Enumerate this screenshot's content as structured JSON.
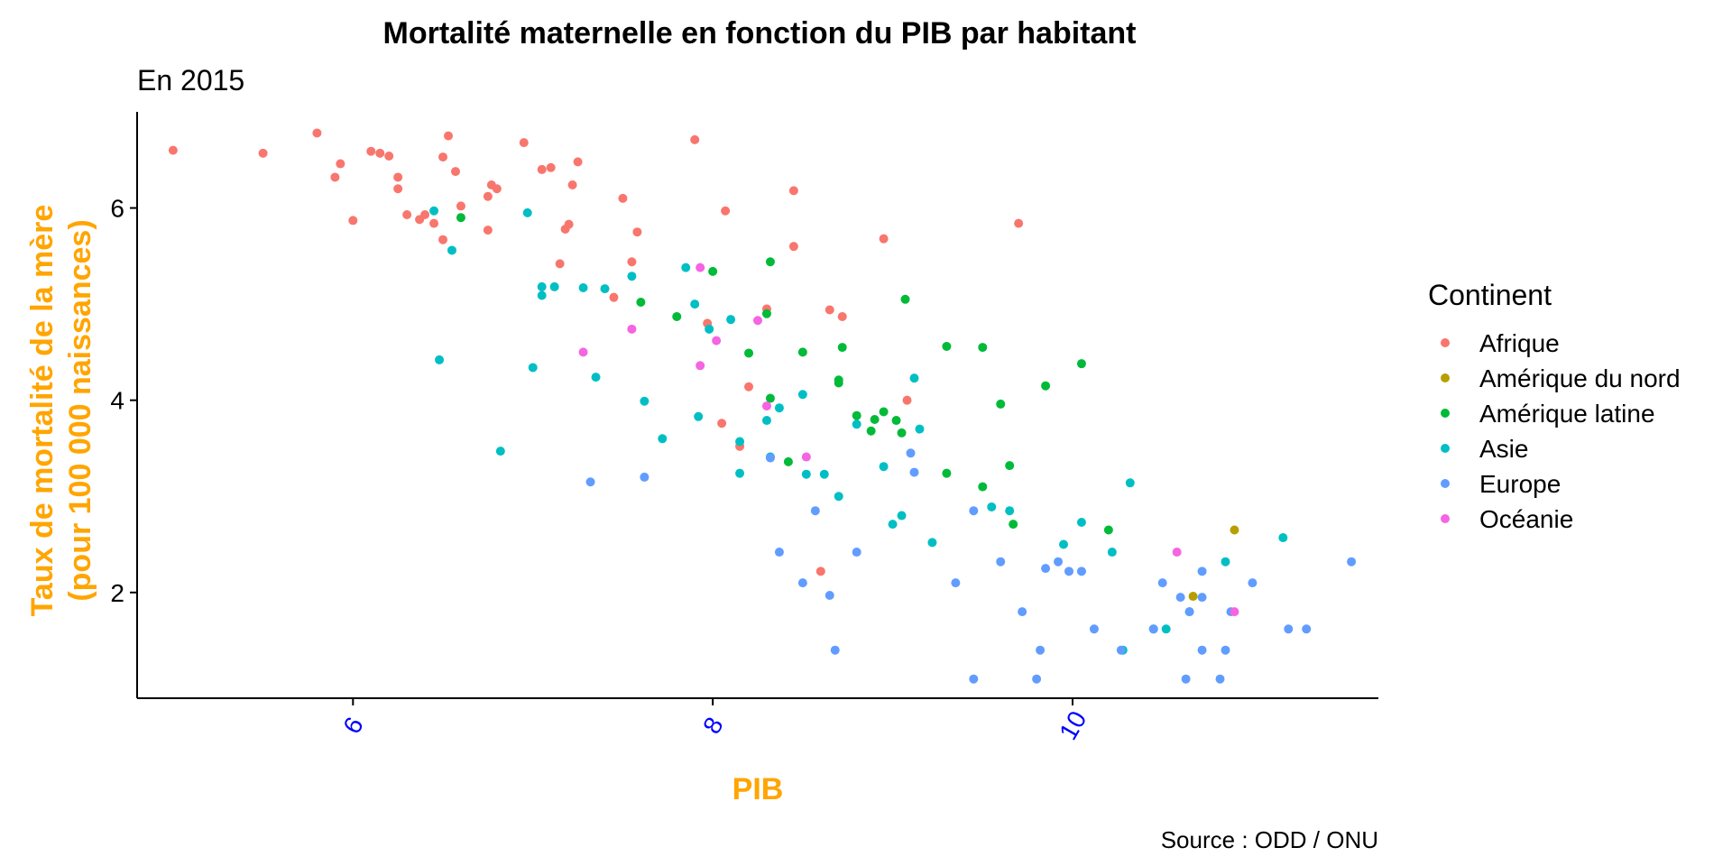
{
  "chart_data": {
    "type": "scatter",
    "title": "Mortalité maternelle en fonction du PIB par habitant",
    "subtitle": "En 2015",
    "xlabel": "PIB",
    "ylabel_line1": "Taux de mortalité de la mère",
    "ylabel_line2": "(pour 100 000 naissances)",
    "caption": "Source : ODD / ONU",
    "xlim": [
      4.8,
      11.7
    ],
    "ylim": [
      0.9,
      7.0
    ],
    "xticks": [
      6,
      8,
      10
    ],
    "xtick_labels": [
      "6",
      "8",
      "10"
    ],
    "yticks": [
      2,
      4,
      6
    ],
    "ytick_labels": [
      "2",
      "4",
      "6"
    ],
    "grid": false,
    "legend_position": "right",
    "legend_title": "Continent",
    "axis_title_color": "#FFA500",
    "x_tick_color": "#0000FF",
    "series": [
      {
        "name": "Afrique",
        "color": "#F8766D",
        "points": [
          [
            5.0,
            6.6
          ],
          [
            5.5,
            6.57
          ],
          [
            5.8,
            6.78
          ],
          [
            5.9,
            6.32
          ],
          [
            5.93,
            6.46
          ],
          [
            6.0,
            5.87
          ],
          [
            6.1,
            6.59
          ],
          [
            6.15,
            6.57
          ],
          [
            6.2,
            6.54
          ],
          [
            6.25,
            6.32
          ],
          [
            6.25,
            6.2
          ],
          [
            6.3,
            5.93
          ],
          [
            6.37,
            5.88
          ],
          [
            6.4,
            5.93
          ],
          [
            6.45,
            5.84
          ],
          [
            6.5,
            6.53
          ],
          [
            6.5,
            5.67
          ],
          [
            6.53,
            6.75
          ],
          [
            6.57,
            6.38
          ],
          [
            6.6,
            6.02
          ],
          [
            6.75,
            5.77
          ],
          [
            6.75,
            6.12
          ],
          [
            6.77,
            6.24
          ],
          [
            6.8,
            6.2
          ],
          [
            6.95,
            6.68
          ],
          [
            7.05,
            6.4
          ],
          [
            7.1,
            6.42
          ],
          [
            7.15,
            5.42
          ],
          [
            7.18,
            5.78
          ],
          [
            7.2,
            5.83
          ],
          [
            7.22,
            6.24
          ],
          [
            7.25,
            6.48
          ],
          [
            7.45,
            5.07
          ],
          [
            7.5,
            6.1
          ],
          [
            7.55,
            5.44
          ],
          [
            7.58,
            5.75
          ],
          [
            7.9,
            6.71
          ],
          [
            7.97,
            4.8
          ],
          [
            8.05,
            3.76
          ],
          [
            8.07,
            5.97
          ],
          [
            8.15,
            3.52
          ],
          [
            8.2,
            4.14
          ],
          [
            8.3,
            4.95
          ],
          [
            8.45,
            5.6
          ],
          [
            8.45,
            6.18
          ],
          [
            8.6,
            2.22
          ],
          [
            8.65,
            4.94
          ],
          [
            8.72,
            4.87
          ],
          [
            8.95,
            5.68
          ],
          [
            9.08,
            4.0
          ],
          [
            9.7,
            5.84
          ]
        ]
      },
      {
        "name": "Amérique du nord",
        "color": "#B79F00",
        "points": [
          [
            10.67,
            1.96
          ],
          [
            10.9,
            2.65
          ]
        ]
      },
      {
        "name": "Amérique latine",
        "color": "#00BA38",
        "points": [
          [
            6.6,
            5.9
          ],
          [
            7.6,
            5.02
          ],
          [
            7.8,
            4.87
          ],
          [
            8.0,
            5.34
          ],
          [
            8.2,
            4.49
          ],
          [
            8.3,
            4.9
          ],
          [
            8.32,
            4.02
          ],
          [
            8.32,
            5.44
          ],
          [
            8.42,
            3.36
          ],
          [
            8.5,
            4.5
          ],
          [
            8.7,
            4.21
          ],
          [
            8.7,
            4.18
          ],
          [
            8.72,
            4.55
          ],
          [
            8.8,
            3.84
          ],
          [
            8.88,
            3.68
          ],
          [
            8.9,
            3.8
          ],
          [
            8.95,
            3.88
          ],
          [
            9.02,
            3.79
          ],
          [
            9.05,
            3.66
          ],
          [
            9.07,
            5.05
          ],
          [
            9.3,
            3.24
          ],
          [
            9.3,
            4.56
          ],
          [
            9.5,
            4.55
          ],
          [
            9.5,
            3.1
          ],
          [
            9.6,
            3.96
          ],
          [
            9.65,
            3.32
          ],
          [
            9.67,
            2.71
          ],
          [
            9.85,
            4.15
          ],
          [
            10.05,
            4.38
          ],
          [
            10.2,
            2.65
          ]
        ]
      },
      {
        "name": "Asie",
        "color": "#00BFC4",
        "points": [
          [
            6.45,
            5.97
          ],
          [
            6.55,
            5.56
          ],
          [
            6.48,
            4.42
          ],
          [
            6.82,
            3.47
          ],
          [
            6.97,
            5.95
          ],
          [
            7.0,
            4.34
          ],
          [
            7.05,
            5.18
          ],
          [
            7.05,
            5.09
          ],
          [
            7.12,
            5.18
          ],
          [
            7.28,
            5.17
          ],
          [
            7.35,
            4.24
          ],
          [
            7.4,
            5.16
          ],
          [
            7.55,
            5.29
          ],
          [
            7.62,
            3.99
          ],
          [
            7.72,
            3.6
          ],
          [
            7.85,
            5.38
          ],
          [
            7.9,
            5.0
          ],
          [
            7.92,
            3.83
          ],
          [
            7.98,
            4.74
          ],
          [
            8.1,
            4.84
          ],
          [
            8.15,
            3.57
          ],
          [
            8.15,
            3.24
          ],
          [
            8.3,
            3.79
          ],
          [
            8.32,
            3.41
          ],
          [
            8.37,
            3.92
          ],
          [
            8.5,
            4.06
          ],
          [
            8.52,
            3.23
          ],
          [
            8.62,
            3.23
          ],
          [
            8.7,
            3.0
          ],
          [
            8.8,
            3.75
          ],
          [
            8.95,
            3.31
          ],
          [
            9.0,
            2.71
          ],
          [
            9.05,
            2.8
          ],
          [
            9.12,
            4.23
          ],
          [
            9.15,
            3.7
          ],
          [
            9.22,
            2.52
          ],
          [
            9.55,
            2.89
          ],
          [
            9.65,
            2.85
          ],
          [
            9.95,
            2.5
          ],
          [
            10.05,
            2.73
          ],
          [
            10.22,
            2.42
          ],
          [
            10.28,
            1.4
          ],
          [
            10.32,
            3.14
          ],
          [
            10.45,
            1.62
          ],
          [
            10.52,
            1.62
          ],
          [
            10.65,
            1.8
          ],
          [
            10.85,
            2.32
          ],
          [
            11.17,
            2.57
          ]
        ]
      },
      {
        "name": "Europe",
        "color": "#619CFF",
        "points": [
          [
            7.32,
            3.15
          ],
          [
            7.62,
            3.2
          ],
          [
            8.32,
            3.4
          ],
          [
            8.37,
            2.42
          ],
          [
            8.5,
            2.1
          ],
          [
            8.57,
            2.85
          ],
          [
            8.65,
            1.97
          ],
          [
            8.68,
            1.4
          ],
          [
            8.8,
            2.42
          ],
          [
            9.1,
            3.45
          ],
          [
            9.12,
            3.25
          ],
          [
            9.35,
            2.1
          ],
          [
            9.45,
            1.1
          ],
          [
            9.45,
            2.85
          ],
          [
            9.6,
            2.32
          ],
          [
            9.72,
            1.8
          ],
          [
            9.8,
            1.1
          ],
          [
            9.82,
            1.4
          ],
          [
            9.85,
            2.25
          ],
          [
            9.92,
            2.32
          ],
          [
            9.98,
            2.22
          ],
          [
            10.05,
            2.22
          ],
          [
            10.12,
            1.62
          ],
          [
            10.27,
            1.4
          ],
          [
            10.45,
            1.62
          ],
          [
            10.5,
            2.1
          ],
          [
            10.6,
            1.95
          ],
          [
            10.63,
            1.1
          ],
          [
            10.65,
            1.8
          ],
          [
            10.72,
            1.4
          ],
          [
            10.72,
            2.22
          ],
          [
            10.72,
            1.95
          ],
          [
            10.82,
            1.1
          ],
          [
            10.85,
            1.4
          ],
          [
            10.88,
            1.8
          ],
          [
            11.0,
            2.1
          ],
          [
            11.2,
            1.62
          ],
          [
            11.3,
            1.62
          ],
          [
            11.55,
            2.32
          ]
        ]
      },
      {
        "name": "Océanie",
        "color": "#F564E3",
        "points": [
          [
            7.28,
            4.5
          ],
          [
            7.55,
            4.74
          ],
          [
            7.93,
            5.38
          ],
          [
            7.93,
            4.36
          ],
          [
            8.02,
            4.62
          ],
          [
            8.25,
            4.83
          ],
          [
            8.3,
            3.94
          ],
          [
            8.52,
            3.41
          ],
          [
            10.58,
            2.42
          ],
          [
            10.9,
            1.8
          ]
        ]
      }
    ]
  }
}
